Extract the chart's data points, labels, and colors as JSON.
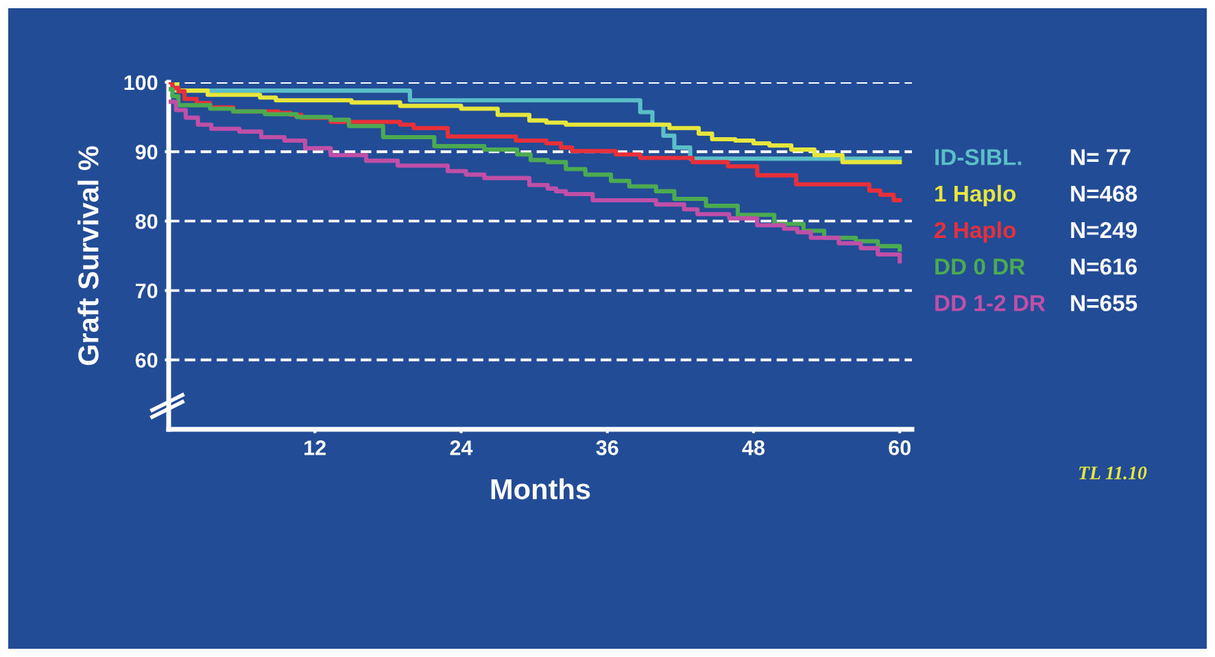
{
  "chart_data": {
    "type": "step",
    "xlabel": "Months",
    "ylabel": "Graft Survival %",
    "xlim": [
      0,
      61
    ],
    "ylim": [
      50,
      100
    ],
    "xticks": [
      12,
      24,
      36,
      48,
      60
    ],
    "yticks": [
      60,
      70,
      80,
      90,
      100
    ],
    "grid": "y",
    "legend": "right",
    "line_style": "solid",
    "marker": "none",
    "annotations": [
      "N= 77",
      "N=468",
      "N=249",
      "N=616",
      "N=655",
      "TL 11.10"
    ],
    "series": [
      {
        "name": "ID-SIBL.",
        "color": "#5bbfc8",
        "x": [
          0,
          0.5,
          19.8,
          38.7,
          39.7,
          40.6,
          41.5,
          42.8,
          60
        ],
        "values": [
          100,
          98.8,
          97.4,
          95.7,
          93.9,
          92.3,
          90.6,
          89.0,
          89.0
        ]
      },
      {
        "name": "1 Haplo",
        "color": "#e6e63c",
        "x": [
          0,
          0.7,
          3.2,
          7.5,
          8.8,
          15,
          19,
          24,
          27,
          29.6,
          31,
          32.6,
          41.1,
          43.5,
          44.6,
          46.5,
          48,
          49.3,
          51.1,
          53,
          55.3,
          60
        ],
        "values": [
          100,
          98.8,
          98.2,
          97.8,
          97.4,
          97.1,
          96.6,
          96.2,
          95.3,
          94.5,
          94.2,
          93.9,
          93.4,
          92.6,
          91.8,
          91.6,
          91.2,
          90.9,
          90.3,
          89.5,
          88.5,
          88.5
        ]
      },
      {
        "name": "2 Haplo",
        "color": "#e8303a",
        "x": [
          0,
          0.3,
          0.8,
          1.3,
          2.3,
          3.4,
          5.3,
          9,
          10,
          10.9,
          13.3,
          19,
          20.1,
          22.9,
          28.5,
          31,
          32.2,
          33.1,
          36.7,
          38.7,
          43,
          45.9,
          48.3,
          51.5,
          57.5,
          58.4,
          59.5,
          60
        ],
        "values": [
          100,
          99.2,
          98.7,
          97.6,
          97.0,
          96.4,
          95.8,
          95.6,
          95.3,
          94.9,
          94.3,
          93.9,
          93.4,
          92.2,
          91.6,
          91.2,
          90.6,
          90.1,
          89.6,
          89.1,
          88.5,
          87.9,
          86.6,
          85.3,
          84.4,
          83.8,
          83.0,
          83.0
        ]
      },
      {
        "name": "DD 0 DR",
        "color": "#4caa50",
        "x": [
          0,
          0.3,
          0.8,
          3.4,
          5.3,
          7.9,
          10.5,
          13.3,
          14.8,
          17.6,
          21.8,
          25.9,
          28.6,
          29.7,
          31.1,
          32.6,
          34.2,
          36.3,
          37.8,
          40,
          41.5,
          44.1,
          46.7,
          49.7,
          52.1,
          53.8,
          56.4,
          58.2,
          60
        ],
        "values": [
          99,
          98.0,
          96.7,
          96.2,
          95.8,
          95.4,
          95.0,
          94.6,
          93.7,
          92.1,
          90.8,
          90.3,
          89.6,
          88.8,
          88.5,
          87.5,
          86.7,
          85.8,
          85.0,
          84.3,
          83.2,
          82.2,
          80.9,
          79.6,
          78.6,
          77.6,
          77.1,
          76.4,
          75.9
        ]
      },
      {
        "name": "DD 1-2 DR",
        "color": "#c04fa8",
        "x": [
          0,
          0.6,
          1.4,
          2.4,
          3.5,
          5.8,
          7.6,
          9.5,
          11.2,
          13.3,
          16.2,
          18.8,
          22.9,
          24.4,
          25.9,
          29.6,
          31.1,
          31.8,
          32.6,
          34.8,
          40,
          42.3,
          43.4,
          46,
          48.3,
          50.5,
          51.6,
          52.7,
          55,
          56.8,
          58.2,
          60
        ],
        "values": [
          97.2,
          96.0,
          94.9,
          93.9,
          93.3,
          92.9,
          92.1,
          91.6,
          90.5,
          89.5,
          88.7,
          88.0,
          87.2,
          86.7,
          86.2,
          85.2,
          84.7,
          84.3,
          83.9,
          83.0,
          82.4,
          81.7,
          81.0,
          80.4,
          79.4,
          78.9,
          78.4,
          77.6,
          76.8,
          76.1,
          75.2,
          74.2
        ]
      }
    ]
  }
}
